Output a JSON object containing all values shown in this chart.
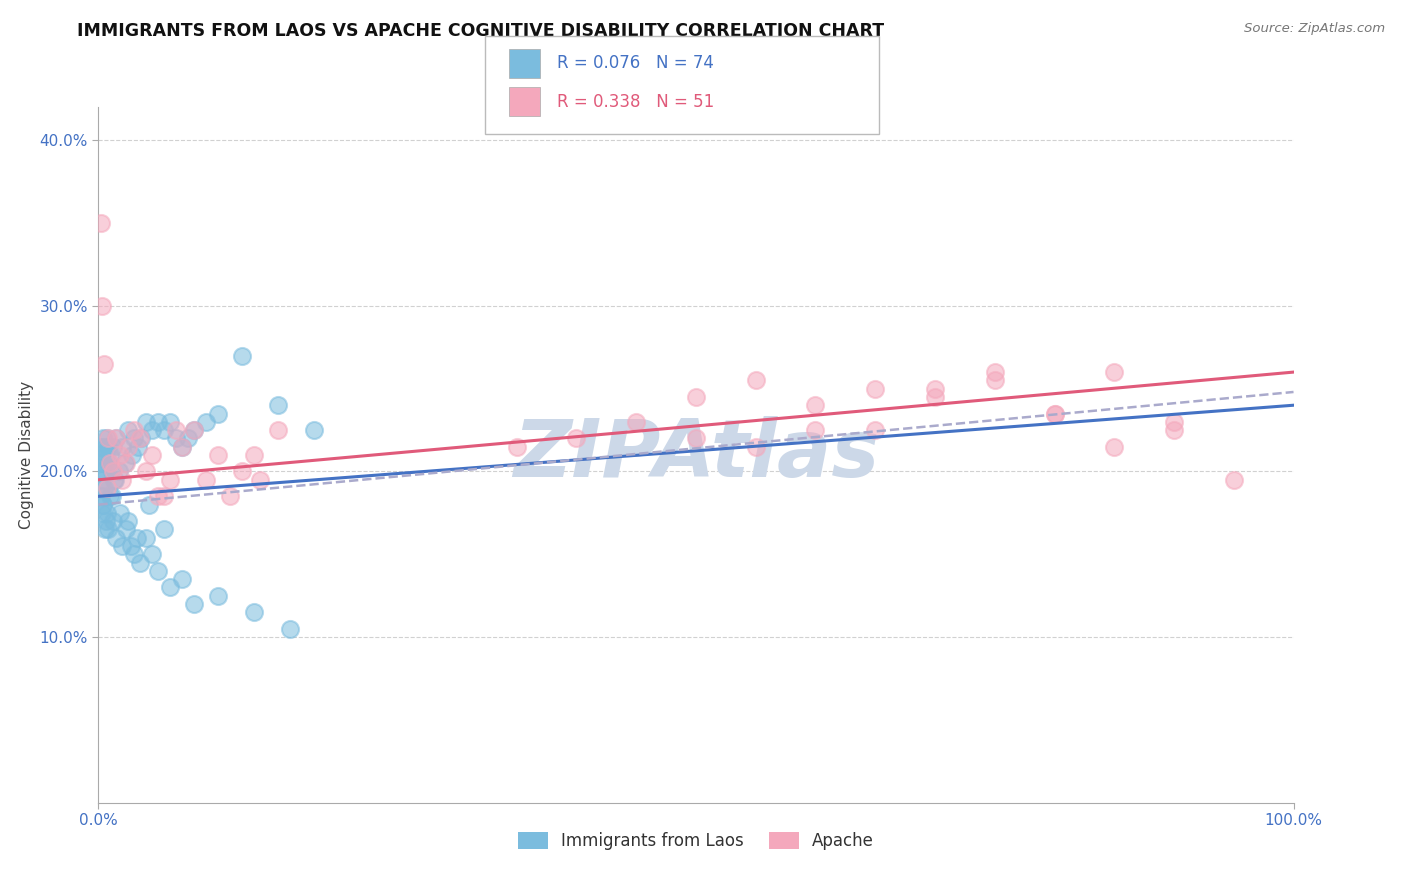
{
  "title": "IMMIGRANTS FROM LAOS VS APACHE COGNITIVE DISABILITY CORRELATION CHART",
  "source": "Source: ZipAtlas.com",
  "ylabel": "Cognitive Disability",
  "legend_label1": "Immigrants from Laos",
  "legend_label2": "Apache",
  "r1": "0.076",
  "n1": "74",
  "r2": "0.338",
  "n2": "51",
  "color_blue": "#7bbcde",
  "color_pink": "#f4a8bc",
  "color_blue_text": "#4472c4",
  "color_pink_text": "#e05a7a",
  "color_blue_line": "#4472c4",
  "color_pink_line": "#e05a7a",
  "color_dashed": "#aaaacc",
  "watermark": "ZIPAtlas",
  "blue_points_x": [
    0.1,
    0.15,
    0.2,
    0.25,
    0.3,
    0.35,
    0.4,
    0.45,
    0.5,
    0.6,
    0.7,
    0.8,
    0.9,
    1.0,
    1.1,
    1.2,
    1.3,
    1.5,
    1.7,
    2.0,
    2.2,
    2.5,
    2.8,
    3.0,
    3.3,
    3.6,
    4.0,
    4.5,
    5.0,
    5.5,
    6.0,
    6.5,
    7.0,
    7.5,
    8.0,
    9.0,
    10.0,
    12.0,
    15.0,
    18.0,
    0.2,
    0.3,
    0.4,
    0.5,
    0.6,
    0.8,
    1.0,
    1.2,
    1.5,
    2.0,
    2.5,
    3.0,
    3.5,
    4.0,
    4.5,
    5.0,
    6.0,
    7.0,
    8.0,
    10.0,
    13.0,
    16.0,
    0.25,
    0.35,
    0.55,
    0.75,
    1.1,
    1.4,
    1.8,
    2.3,
    2.7,
    3.2,
    4.2,
    5.5
  ],
  "blue_points_y": [
    20.5,
    21.0,
    21.5,
    20.0,
    19.5,
    22.0,
    20.5,
    21.5,
    20.0,
    21.0,
    22.0,
    21.5,
    20.5,
    21.0,
    20.0,
    21.5,
    19.5,
    22.0,
    20.0,
    21.5,
    20.5,
    22.5,
    21.0,
    22.0,
    21.5,
    22.0,
    23.0,
    22.5,
    23.0,
    22.5,
    23.0,
    22.0,
    21.5,
    22.0,
    22.5,
    23.0,
    23.5,
    27.0,
    24.0,
    22.5,
    18.5,
    17.5,
    18.0,
    19.0,
    17.0,
    16.5,
    18.5,
    17.0,
    16.0,
    15.5,
    17.0,
    15.0,
    14.5,
    16.0,
    15.0,
    14.0,
    13.0,
    13.5,
    12.0,
    12.5,
    11.5,
    10.5,
    19.0,
    18.0,
    16.5,
    17.5,
    18.5,
    19.5,
    17.5,
    16.5,
    15.5,
    16.0,
    18.0,
    16.5
  ],
  "pink_points_x": [
    0.2,
    0.5,
    0.8,
    1.0,
    1.5,
    2.0,
    2.5,
    3.0,
    4.0,
    5.0,
    6.0,
    7.0,
    8.0,
    10.0,
    12.0,
    3.5,
    4.5,
    5.5,
    9.0,
    11.0,
    0.3,
    0.7,
    1.2,
    1.8,
    2.3,
    6.5,
    13.0,
    15.0,
    13.5,
    50.0,
    55.0,
    60.0,
    65.0,
    70.0,
    75.0,
    80.0,
    85.0,
    90.0,
    95.0,
    85.0,
    90.0,
    75.0,
    80.0,
    70.0,
    65.0,
    50.0,
    55.0,
    60.0,
    45.0,
    40.0,
    35.0
  ],
  "pink_points_y": [
    35.0,
    26.5,
    22.0,
    20.5,
    22.0,
    19.5,
    21.5,
    22.5,
    20.0,
    18.5,
    19.5,
    21.5,
    22.5,
    21.0,
    20.0,
    22.0,
    21.0,
    18.5,
    19.5,
    18.5,
    30.0,
    19.0,
    20.0,
    21.0,
    20.5,
    22.5,
    21.0,
    22.5,
    19.5,
    24.5,
    25.5,
    24.0,
    25.0,
    24.5,
    25.5,
    23.5,
    26.0,
    22.5,
    19.5,
    21.5,
    23.0,
    26.0,
    23.5,
    25.0,
    22.5,
    22.0,
    21.5,
    22.5,
    23.0,
    22.0,
    21.5
  ],
  "background_color": "#ffffff",
  "grid_color": "#cccccc",
  "title_fontsize": 12.5,
  "axis_label_fontsize": 11,
  "tick_fontsize": 11,
  "watermark_color": "#ccd8e8",
  "watermark_fontsize": 58
}
